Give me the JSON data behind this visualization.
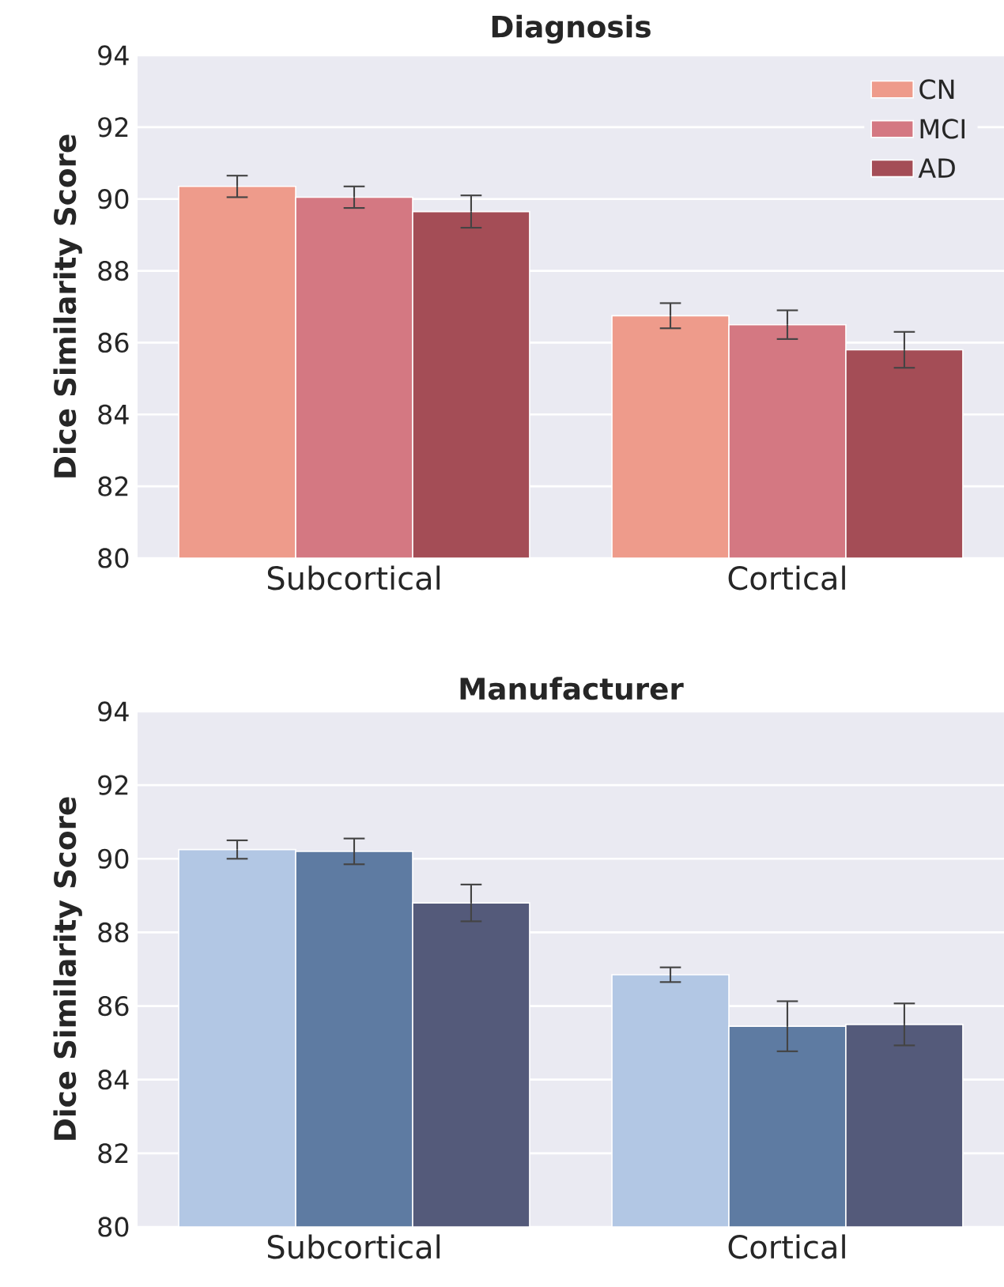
{
  "chart_data": [
    {
      "type": "bar",
      "title": "Diagnosis",
      "ylabel": "Dice Similarity Score",
      "categories": [
        "Subcortical",
        "Cortical"
      ],
      "ylim": [
        80,
        94
      ],
      "yticks": [
        80,
        82,
        84,
        86,
        88,
        90,
        92,
        94
      ],
      "grid": "y",
      "legend": "top right",
      "series": [
        {
          "name": "CN",
          "color": "#ee9b8b",
          "values": [
            90.35,
            86.75
          ],
          "errors": [
            0.3,
            0.35
          ]
        },
        {
          "name": "MCI",
          "color": "#d47882",
          "values": [
            90.05,
            86.5
          ],
          "errors": [
            0.3,
            0.4
          ]
        },
        {
          "name": "AD",
          "color": "#a44d56",
          "values": [
            89.65,
            85.8
          ],
          "errors": [
            0.45,
            0.5
          ]
        }
      ]
    },
    {
      "type": "bar",
      "title": "Manufacturer",
      "ylabel": "Dice Similarity Score",
      "categories": [
        "Subcortical",
        "Cortical"
      ],
      "ylim": [
        80,
        94
      ],
      "yticks": [
        80,
        82,
        84,
        86,
        88,
        90,
        92,
        94
      ],
      "grid": "y",
      "series": [
        {
          "color": "#b2c7e4",
          "values": [
            90.25,
            86.85
          ],
          "errors": [
            0.25,
            0.2
          ]
        },
        {
          "color": "#5e7ba2",
          "values": [
            90.2,
            85.45
          ],
          "errors": [
            0.35,
            0.68
          ]
        },
        {
          "color": "#545a7a",
          "values": [
            88.8,
            85.5
          ],
          "errors": [
            0.5,
            0.57
          ]
        }
      ]
    }
  ]
}
